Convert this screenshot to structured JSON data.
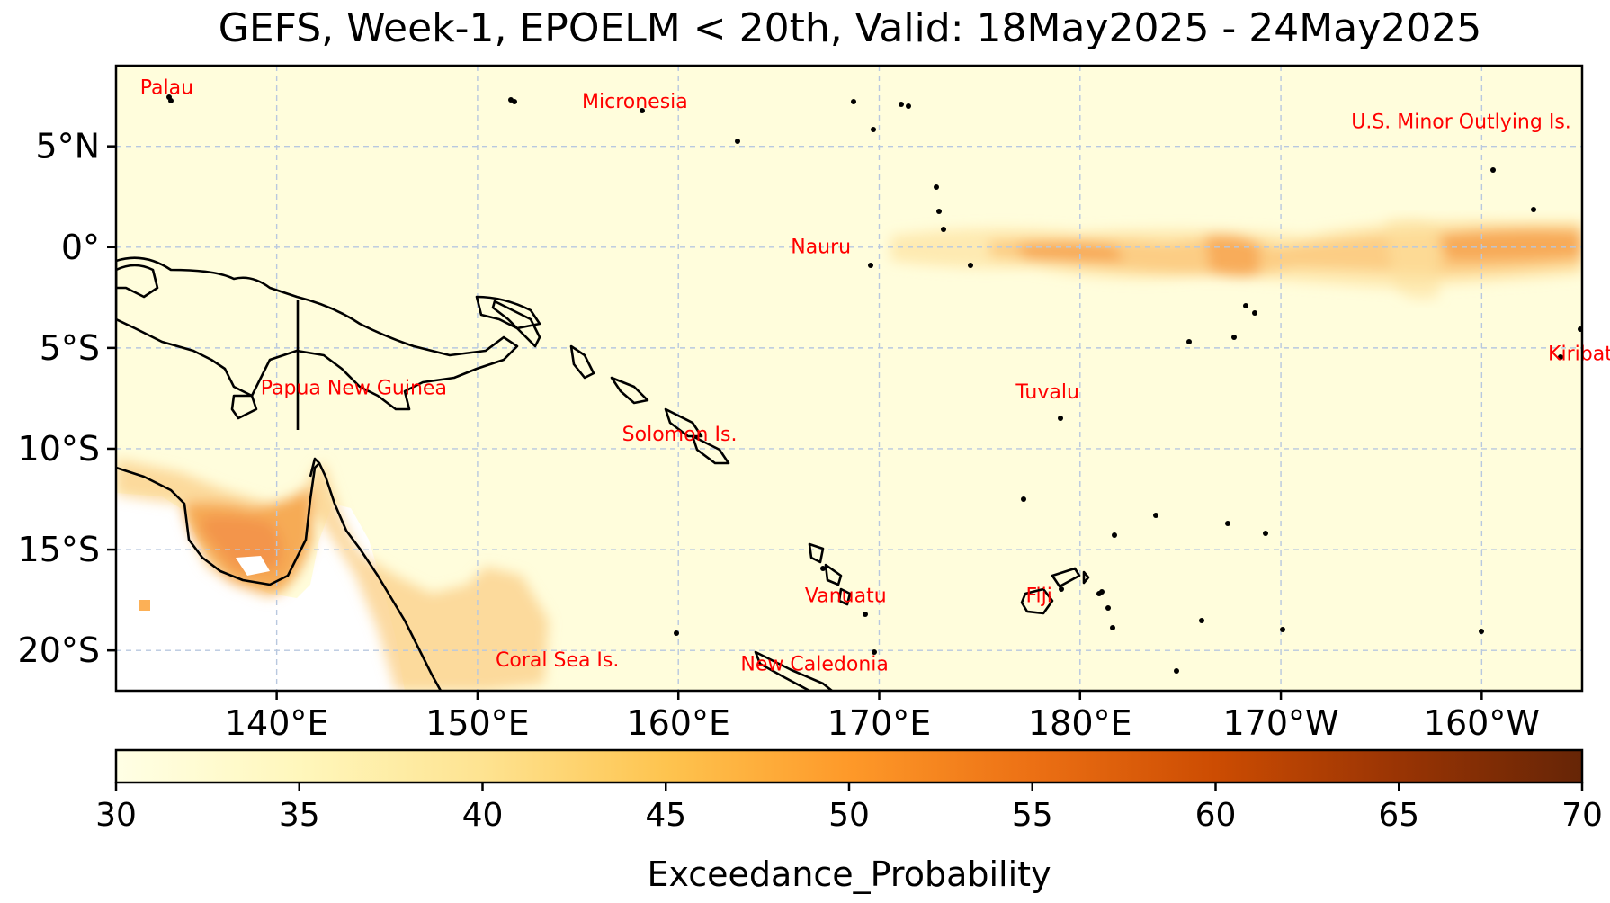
{
  "title": "GEFS, Week-1, EPOELM < 20th, Valid: 18May2025 - 24May2025",
  "map": {
    "lon_range": [
      132,
      205
    ],
    "lat_range": [
      -22,
      9
    ],
    "lat_ticks": [
      {
        "lat": 5,
        "label": "5°N"
      },
      {
        "lat": 0,
        "label": "0°"
      },
      {
        "lat": -5,
        "label": "5°S"
      },
      {
        "lat": -10,
        "label": "10°S"
      },
      {
        "lat": -15,
        "label": "15°S"
      },
      {
        "lat": -20,
        "label": "20°S"
      }
    ],
    "lon_ticks": [
      {
        "lon": 140,
        "label": "140°E"
      },
      {
        "lon": 150,
        "label": "150°E"
      },
      {
        "lon": 160,
        "label": "160°E"
      },
      {
        "lon": 170,
        "label": "170°E"
      },
      {
        "lon": 180,
        "label": "180°E"
      },
      {
        "lon": 190,
        "label": "170°W"
      },
      {
        "lon": 200,
        "label": "160°W"
      }
    ],
    "gridlines": true,
    "background_color": "#fffddc",
    "places": [
      {
        "name": "Palau",
        "lon": 133.2,
        "lat": 7.6
      },
      {
        "name": "Micronesia",
        "lon": 155.2,
        "lat": 6.9
      },
      {
        "name": "U.S. Minor Outlying Is.",
        "lon": 193.5,
        "lat": 5.9
      },
      {
        "name": "Nauru",
        "lon": 165.6,
        "lat": -0.3
      },
      {
        "name": "Kiribati",
        "lon": 203.3,
        "lat": -5.6
      },
      {
        "name": "Papua New Guinea",
        "lon": 139.2,
        "lat": -7.3
      },
      {
        "name": "Tuvalu",
        "lon": 176.8,
        "lat": -7.5
      },
      {
        "name": "Solomon Is.",
        "lon": 157.2,
        "lat": -9.6
      },
      {
        "name": "Vanuatu",
        "lon": 166.3,
        "lat": -17.6
      },
      {
        "name": "Fiji",
        "lon": 177.3,
        "lat": -17.6
      },
      {
        "name": "Coral Sea Is.",
        "lon": 150.9,
        "lat": -20.8
      },
      {
        "name": "New Caledonia",
        "lon": 163.1,
        "lat": -21.0
      }
    ]
  },
  "colorbar": {
    "label": "Exceedance_Probability",
    "min": 30,
    "max": 70,
    "ticks": [
      "30",
      "35",
      "40",
      "45",
      "50",
      "55",
      "60",
      "65",
      "70"
    ],
    "colors": [
      "#ffffe5",
      "#fff2be",
      "#fee391",
      "#fec44f",
      "#fe9929",
      "#ec7014",
      "#cc4c02",
      "#993404",
      "#662506"
    ]
  }
}
